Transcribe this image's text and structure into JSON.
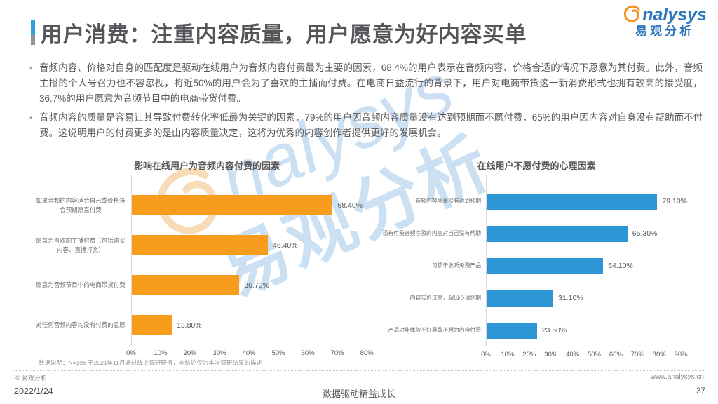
{
  "header": {
    "title": "用户消费：注重内容质量，用户愿意为好内容买单",
    "logo": {
      "brand_rest": "nalysys",
      "brand_cn": "易观分析"
    }
  },
  "bullets": [
    "音频内容、价格对自身的匹配度是驱动在线用户为音频内容付费最为主要的因素，68.4%的用户表示在音频内容、价格合适的情况下愿意为其付费。此外，音频主播的个人号召力也不容忽视，将近50%的用户会为了喜欢的主播而付费。在电商日益流行的背景下，用户对电商带货这一新消费形式也拥有较高的接受度，36.7%的用户愿意为音频节目中的电商带货付费。",
    "音频内容的质量是容易让其导致付费转化率低最为关键的因素，79%的用户因音频内容质量没有达到预期而不愿付费，65%的用户因内容对自身没有帮助而不付费。这说明用户的付费更多的是由内容质量决定，这将为优秀的内容创作者提供更好的发展机会。"
  ],
  "chart_data": [
    {
      "type": "bar",
      "orientation": "horizontal",
      "title": "影响在线用户为音频内容付费的因素",
      "bar_color": "#F89C1E",
      "categories": [
        "如果音频的内容适合自己或价格符合预期愿意付费",
        "愿意为喜欢的主播付费（包括购买内容、直播打赏）",
        "愿意为音频节目中的电商带货付费",
        "对任何音频内容均没有付费的意愿"
      ],
      "values": [
        68.4,
        46.4,
        36.7,
        13.8
      ],
      "value_labels": [
        "68.40%",
        "46.40%",
        "36.70%",
        "13.80%"
      ],
      "x_ticks": [
        "0%",
        "10%",
        "20%",
        "30%",
        "40%",
        "50%",
        "60%",
        "70%",
        "80%"
      ],
      "xlim": [
        0,
        80
      ],
      "grid": false,
      "legend": "none"
    },
    {
      "type": "bar",
      "orientation": "horizontal",
      "title": "在线用户不愿付费的心理因素",
      "bar_color": "#2D96D4",
      "categories": [
        "音频内容质量没有达到预期",
        "现有付费音频涉及的内容对自己没有帮助",
        "习惯于收听免费产品",
        "内容定价过高，超出心理预期",
        "产品功能体验不好导致不想为内容付费"
      ],
      "values": [
        79.1,
        65.3,
        54.1,
        31.1,
        23.5
      ],
      "value_labels": [
        "79.10%",
        "65.30%",
        "54.10%",
        "31.10%",
        "23.50%"
      ],
      "x_ticks": [
        "0%",
        "10%",
        "20%",
        "30%",
        "40%",
        "50%",
        "60%",
        "70%",
        "80%",
        "90%"
      ],
      "xlim": [
        0,
        90
      ],
      "grid": false,
      "legend": "none"
    }
  ],
  "footnote": "数据说明：N=196 于2021年11月通过线上调研获得，本结论仅为本次调研结果的描述",
  "watermark": {
    "en": "nalysys",
    "cn": "易观分析"
  },
  "footer": {
    "copyright": "© 易观分析",
    "website": "www.analysys.cn",
    "date": "2022/1/24",
    "slogan": "数据驱动精益成长",
    "page_number": "37"
  },
  "colors": {
    "bar_orange": "#F89C1E",
    "bar_blue": "#2D96D4",
    "logo_blue": "#2B76BD",
    "logo_swirl_orange": "#F6921E",
    "title_text": "#57555A",
    "accent_bar_blue": "#2E9FD9",
    "accent_bar_gray": "#919396"
  }
}
